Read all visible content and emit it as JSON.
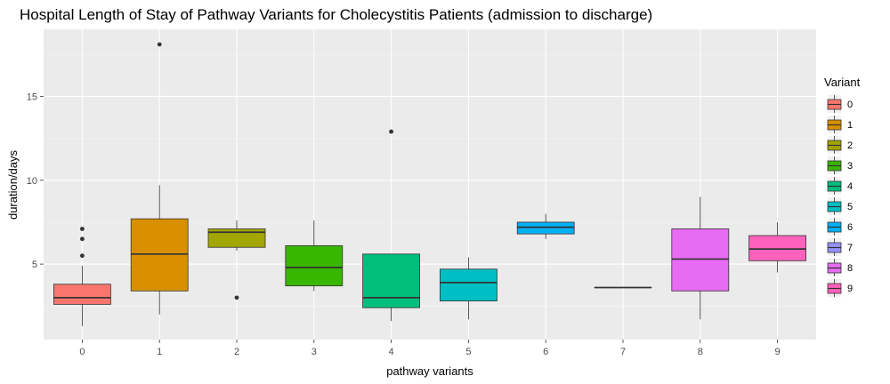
{
  "chart_data": {
    "type": "boxplot",
    "title": "Hospital Length of Stay of Pathway Variants for Cholecystitis Patients (admission to discharge)",
    "xlabel": "pathway variants",
    "ylabel": "duration/days",
    "ylim": [
      0.5,
      19.0
    ],
    "yticks": [
      5,
      10,
      15
    ],
    "categories": [
      "0",
      "1",
      "2",
      "3",
      "4",
      "5",
      "6",
      "7",
      "8",
      "9"
    ],
    "legend": {
      "title": "Variant",
      "position": "right"
    },
    "grid": true,
    "colors": [
      "#F8766D",
      "#D89000",
      "#A3A500",
      "#39B600",
      "#00BF7D",
      "#00BFC4",
      "#00B0F6",
      "#9590FF",
      "#E76BF3",
      "#FF62BC"
    ],
    "boxes": [
      {
        "category": "0",
        "whisker_low": 1.3,
        "q1": 2.6,
        "median": 3.0,
        "q3": 3.8,
        "whisker_high": 4.9,
        "outliers": [
          5.5,
          6.5,
          7.1
        ]
      },
      {
        "category": "1",
        "whisker_low": 2.0,
        "q1": 3.4,
        "median": 5.6,
        "q3": 7.7,
        "whisker_high": 9.7,
        "outliers": [
          18.1
        ]
      },
      {
        "category": "2",
        "whisker_low": 5.8,
        "q1": 6.0,
        "median": 6.9,
        "q3": 7.1,
        "whisker_high": 7.6,
        "outliers": [
          3.0
        ]
      },
      {
        "category": "3",
        "whisker_low": 3.4,
        "q1": 3.7,
        "median": 4.8,
        "q3": 6.1,
        "whisker_high": 7.6,
        "outliers": []
      },
      {
        "category": "4",
        "whisker_low": 1.6,
        "q1": 2.4,
        "median": 3.0,
        "q3": 5.6,
        "whisker_high": 5.6,
        "outliers": [
          12.9
        ]
      },
      {
        "category": "5",
        "whisker_low": 1.7,
        "q1": 2.8,
        "median": 3.9,
        "q3": 4.7,
        "whisker_high": 5.4,
        "outliers": []
      },
      {
        "category": "6",
        "whisker_low": 6.5,
        "q1": 6.8,
        "median": 7.2,
        "q3": 7.5,
        "whisker_high": 8.0,
        "outliers": []
      },
      {
        "category": "7",
        "whisker_low": 3.6,
        "q1": 3.6,
        "median": 3.6,
        "q3": 3.6,
        "whisker_high": 3.6,
        "outliers": []
      },
      {
        "category": "8",
        "whisker_low": 1.7,
        "q1": 3.4,
        "median": 5.3,
        "q3": 7.1,
        "whisker_high": 9.0,
        "outliers": []
      },
      {
        "category": "9",
        "whisker_low": 4.5,
        "q1": 5.2,
        "median": 5.9,
        "q3": 6.7,
        "whisker_high": 7.5,
        "outliers": []
      }
    ]
  }
}
